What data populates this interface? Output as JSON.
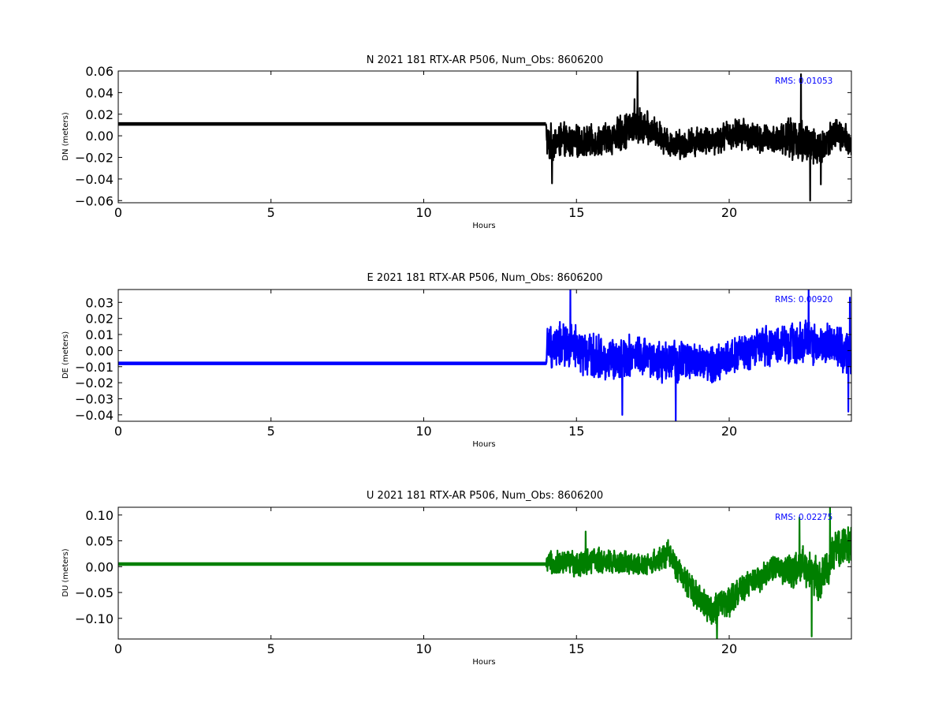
{
  "chart_data": [
    {
      "type": "line",
      "title": "N 2021 181 RTX-AR  P506, Num_Obs: 8606200",
      "xlabel": "Hours",
      "ylabel": "DN (meters)",
      "xlim": [
        0,
        24
      ],
      "ylim": [
        -0.062,
        0.06
      ],
      "xticks": [
        0,
        5,
        10,
        15,
        20
      ],
      "xtick_labels": [
        "0",
        "5",
        "10",
        "15",
        "20"
      ],
      "yticks": [
        0.06,
        0.04,
        0.02,
        0.0,
        -0.02,
        -0.04,
        -0.06
      ],
      "ytick_labels": [
        "0.06",
        "0.04",
        "0.02",
        "0.00",
        "−0.02",
        "−0.04",
        "−0.06"
      ],
      "rms_label": "RMS:  0.01053",
      "rms_color": "#0000ff",
      "color": "#000000",
      "series": [
        {
          "x": [
            0,
            2,
            4,
            6,
            8,
            10,
            12,
            14,
            14.05,
            14.5,
            15,
            15.5,
            16,
            16.5,
            17,
            17.5,
            18,
            18.5,
            19,
            19.5,
            20,
            20.5,
            21,
            21.5,
            22,
            22.5,
            23,
            23.5,
            24
          ],
          "center": [
            0.011,
            0.011,
            0.011,
            0.011,
            0.011,
            0.011,
            0.011,
            0.011,
            -0.008,
            -0.004,
            -0.006,
            -0.005,
            -0.003,
            0.003,
            0.01,
            0.004,
            -0.006,
            -0.008,
            -0.004,
            -0.004,
            0.001,
            0.002,
            -0.004,
            -0.003,
            -0.002,
            -0.006,
            -0.012,
            0.002,
            -0.008
          ],
          "amp": [
            0.001,
            0.001,
            0.001,
            0.001,
            0.001,
            0.001,
            0.001,
            0.001,
            0.02,
            0.018,
            0.017,
            0.016,
            0.017,
            0.019,
            0.02,
            0.016,
            0.015,
            0.015,
            0.015,
            0.015,
            0.016,
            0.016,
            0.016,
            0.016,
            0.02,
            0.024,
            0.02,
            0.018,
            0.016
          ]
        }
      ],
      "peaks": [
        [
          17.0,
          0.06
        ],
        [
          22.35,
          0.057
        ],
        [
          22.65,
          -0.06
        ],
        [
          14.2,
          -0.044
        ],
        [
          16.9,
          0.034
        ],
        [
          23.0,
          -0.045
        ]
      ]
    },
    {
      "type": "line",
      "title": "E 2021 181 RTX-AR  P506, Num_Obs: 8606200",
      "xlabel": "Hours",
      "ylabel": "DE (meters)",
      "xlim": [
        0,
        24
      ],
      "ylim": [
        -0.044,
        0.038
      ],
      "xticks": [
        0,
        5,
        10,
        15,
        20
      ],
      "xtick_labels": [
        "0",
        "5",
        "10",
        "15",
        "20"
      ],
      "yticks": [
        0.03,
        0.02,
        0.01,
        0.0,
        -0.01,
        -0.02,
        -0.03,
        -0.04
      ],
      "ytick_labels": [
        "0.03",
        "0.02",
        "0.01",
        "0.00",
        "−0.01",
        "−0.02",
        "−0.03",
        "−0.04"
      ],
      "rms_label": "RMS:  0.00920",
      "rms_color": "#0000ff",
      "color": "#0000ff",
      "series": [
        {
          "x": [
            0,
            2,
            4,
            6,
            8,
            10,
            12,
            14,
            14.05,
            14.5,
            15,
            15.5,
            16,
            16.5,
            17,
            17.5,
            18,
            18.5,
            19,
            19.5,
            20,
            20.5,
            21,
            21.5,
            22,
            22.5,
            23,
            23.5,
            24
          ],
          "center": [
            -0.008,
            -0.008,
            -0.008,
            -0.008,
            -0.008,
            -0.008,
            -0.008,
            -0.008,
            0.002,
            0.003,
            0.001,
            -0.004,
            -0.006,
            -0.004,
            -0.003,
            -0.006,
            -0.008,
            -0.006,
            -0.007,
            -0.009,
            -0.004,
            -0.001,
            0.002,
            0.003,
            0.004,
            0.006,
            0.003,
            0.004,
            -0.004
          ],
          "amp": [
            0.0008,
            0.0008,
            0.0008,
            0.0008,
            0.0008,
            0.0008,
            0.0008,
            0.0008,
            0.015,
            0.016,
            0.016,
            0.016,
            0.015,
            0.015,
            0.014,
            0.014,
            0.015,
            0.014,
            0.013,
            0.013,
            0.013,
            0.013,
            0.014,
            0.014,
            0.014,
            0.016,
            0.014,
            0.015,
            0.018
          ]
        }
      ],
      "peaks": [
        [
          14.8,
          0.038
        ],
        [
          18.25,
          -0.044
        ],
        [
          22.6,
          0.038
        ],
        [
          16.5,
          -0.04
        ],
        [
          23.9,
          -0.038
        ],
        [
          23.95,
          0.033
        ]
      ]
    },
    {
      "type": "line",
      "title": "U 2021 181 RTX-AR  P506, Num_Obs: 8606200",
      "xlabel": "Hours",
      "ylabel": "DU (meters)",
      "xlim": [
        0,
        24
      ],
      "ylim": [
        -0.14,
        0.115
      ],
      "xticks": [
        0,
        5,
        10,
        15,
        20
      ],
      "xtick_labels": [
        "0",
        "5",
        "10",
        "15",
        "20"
      ],
      "yticks": [
        0.1,
        0.05,
        0.0,
        -0.05,
        -0.1
      ],
      "ytick_labels": [
        "0.10",
        "0.05",
        "0.00",
        "−0.05",
        "−0.10"
      ],
      "rms_label": "RMS:  0.02275",
      "rms_color": "#0000ff",
      "color": "#007f00",
      "series": [
        {
          "x": [
            0,
            2,
            4,
            6,
            8,
            10,
            12,
            14,
            14.05,
            14.5,
            15,
            15.5,
            16,
            16.5,
            17,
            17.5,
            18,
            18.5,
            19,
            19.5,
            20,
            20.5,
            21,
            21.5,
            22,
            22.5,
            23,
            23.5,
            24
          ],
          "center": [
            0.005,
            0.005,
            0.005,
            0.005,
            0.005,
            0.005,
            0.005,
            0.005,
            0.005,
            0.008,
            0.008,
            0.012,
            0.01,
            0.008,
            0.003,
            0.008,
            0.025,
            -0.025,
            -0.06,
            -0.085,
            -0.065,
            -0.04,
            -0.02,
            0.0,
            -0.01,
            0.0,
            -0.03,
            0.035,
            0.05
          ],
          "amp": [
            0.002,
            0.002,
            0.002,
            0.002,
            0.002,
            0.002,
            0.002,
            0.002,
            0.025,
            0.028,
            0.03,
            0.03,
            0.028,
            0.028,
            0.025,
            0.025,
            0.028,
            0.03,
            0.035,
            0.035,
            0.035,
            0.03,
            0.03,
            0.03,
            0.035,
            0.045,
            0.045,
            0.045,
            0.045
          ]
        }
      ],
      "peaks": [
        [
          19.6,
          -0.14
        ],
        [
          23.3,
          0.115
        ],
        [
          22.7,
          -0.135
        ],
        [
          15.3,
          0.068
        ],
        [
          22.3,
          0.095
        ]
      ]
    }
  ]
}
